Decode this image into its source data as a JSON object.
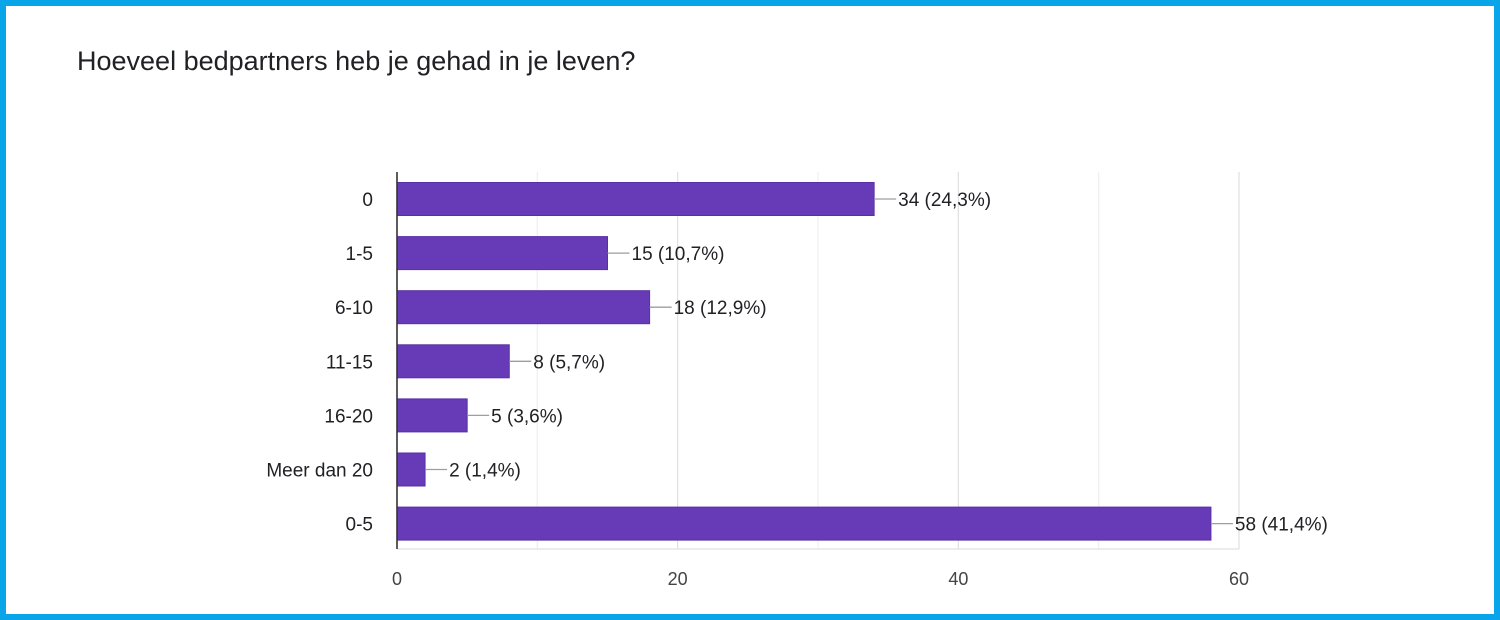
{
  "title": "Hoeveel bedpartners heb je gehad in je leven?",
  "colors": {
    "bar": "#673ab7",
    "frame": "#0aa4e8"
  },
  "chart_data": {
    "type": "bar",
    "orientation": "horizontal",
    "title": "Hoeveel bedpartners heb je gehad in je leven?",
    "categories": [
      "0",
      "1-5",
      "6-10",
      "11-15",
      "16-20",
      "Meer dan 20",
      "0-5"
    ],
    "values": [
      34,
      15,
      18,
      8,
      5,
      2,
      58
    ],
    "labels": [
      "34 (24,3%)",
      "15 (10,7%)",
      "18 (12,9%)",
      "8 (5,7%)",
      "5 (3,6%)",
      "2 (1,4%)",
      "58 (41,4%)"
    ],
    "xlim": [
      0,
      60
    ],
    "xticks": [
      0,
      20,
      40,
      60
    ],
    "grid": true,
    "legend": "none"
  }
}
